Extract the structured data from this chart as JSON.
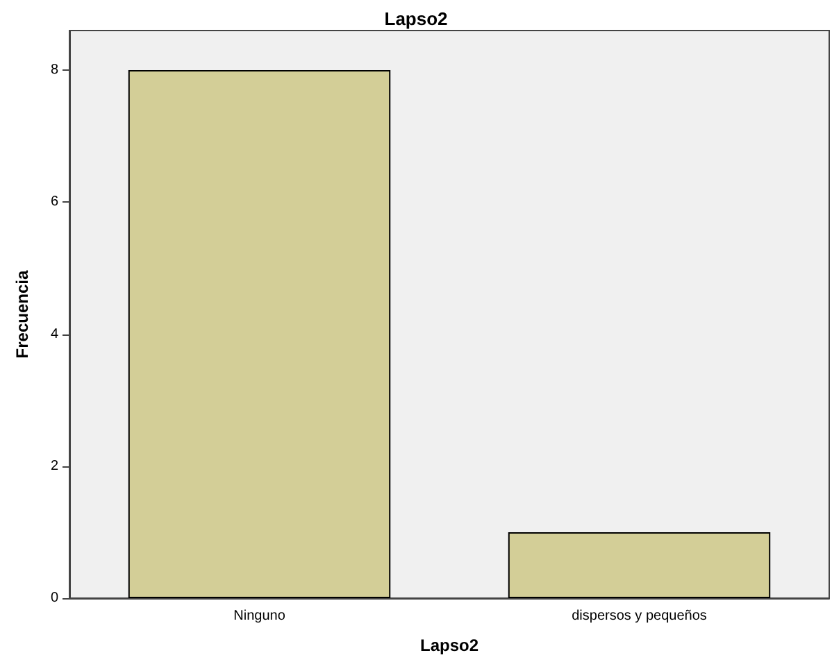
{
  "chart_data": {
    "type": "bar",
    "title": "Lapso2",
    "xlabel": "Lapso2",
    "ylabel": "Frecuencia",
    "categories": [
      "Ninguno",
      "dispersos y pequeños"
    ],
    "values": [
      8,
      1
    ],
    "color": "#d3ce97",
    "ylim": [
      0,
      8.6
    ],
    "yticks": [
      0,
      2,
      4,
      6,
      8
    ],
    "grid": false
  }
}
